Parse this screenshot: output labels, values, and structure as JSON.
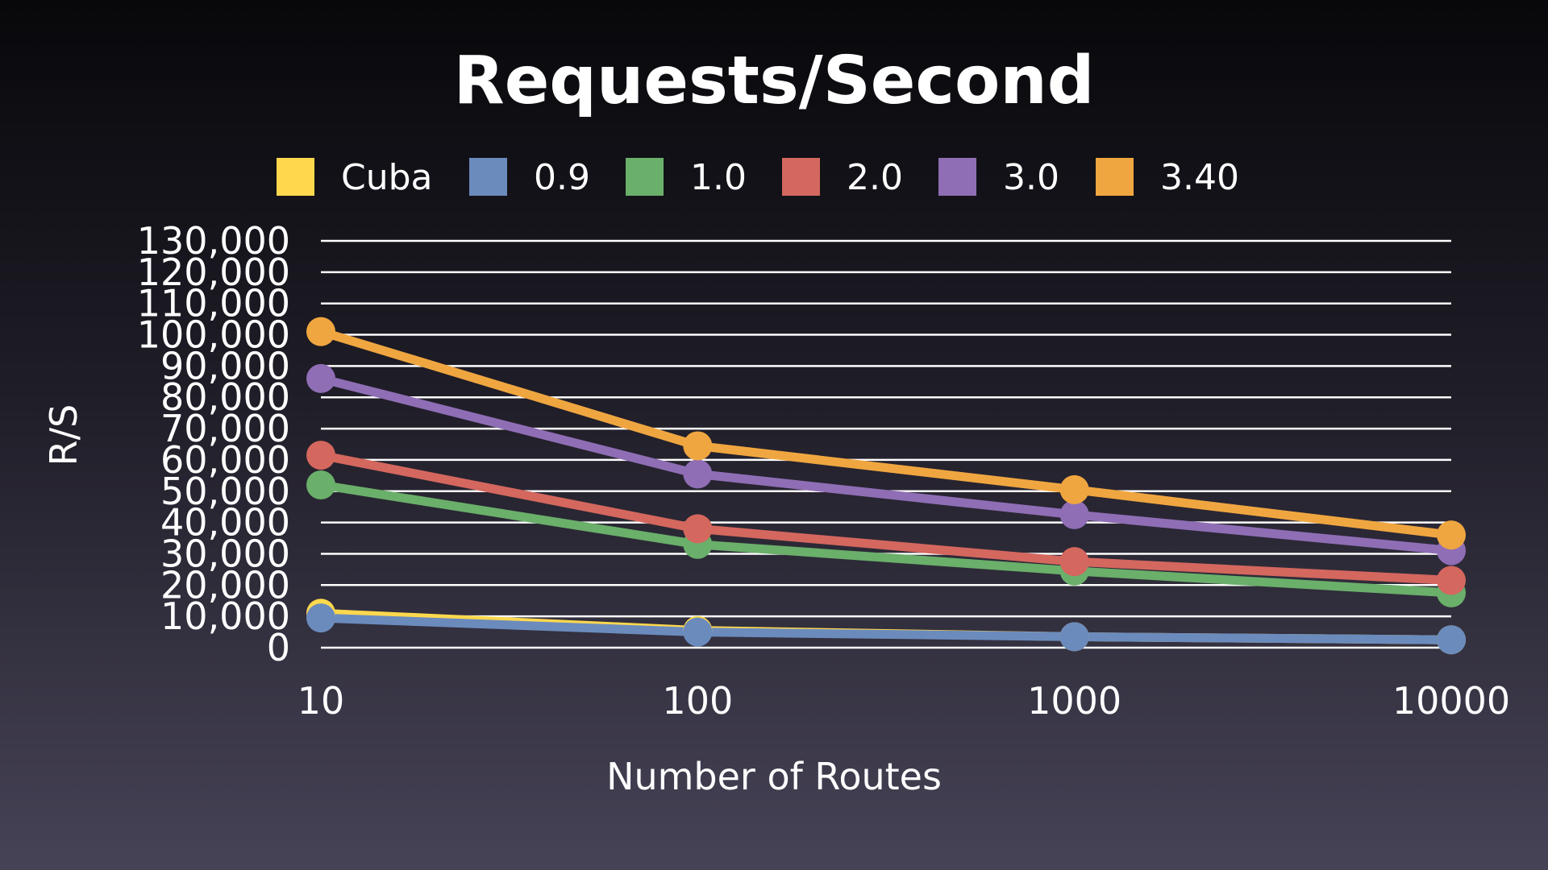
{
  "chart_data": {
    "type": "line",
    "title": "Requests/Second",
    "xlabel": "Number of Routes",
    "ylabel": "R/S",
    "categories": [
      "10",
      "100",
      "1000",
      "10000"
    ],
    "ylim": [
      0,
      130000
    ],
    "yticks": [
      0,
      10000,
      20000,
      30000,
      40000,
      50000,
      60000,
      70000,
      80000,
      90000,
      100000,
      110000,
      120000,
      130000
    ],
    "ytick_labels": [
      "0",
      "10,000",
      "20,000",
      "30,000",
      "40,000",
      "50,000",
      "60,000",
      "70,000",
      "80,000",
      "90,000",
      "100,000",
      "110,000",
      "120,000",
      "130,000"
    ],
    "grid": true,
    "legend_position": "top",
    "series": [
      {
        "name": "Cuba",
        "color": "#ffd84d",
        "values": [
          11000,
          5500,
          3500,
          2500
        ]
      },
      {
        "name": "0.9",
        "color": "#6b8bbd",
        "values": [
          9500,
          5000,
          3500,
          2500
        ]
      },
      {
        "name": "1.0",
        "color": "#6aaf6a",
        "values": [
          52000,
          33000,
          24500,
          17500
        ]
      },
      {
        "name": "2.0",
        "color": "#d4675e",
        "values": [
          61500,
          38000,
          27500,
          21500
        ]
      },
      {
        "name": "3.0",
        "color": "#8f6eb5",
        "values": [
          86000,
          55500,
          42500,
          31000
        ]
      },
      {
        "name": "3.40",
        "color": "#f0a640",
        "values": [
          101000,
          64500,
          50500,
          36000
        ]
      }
    ]
  }
}
